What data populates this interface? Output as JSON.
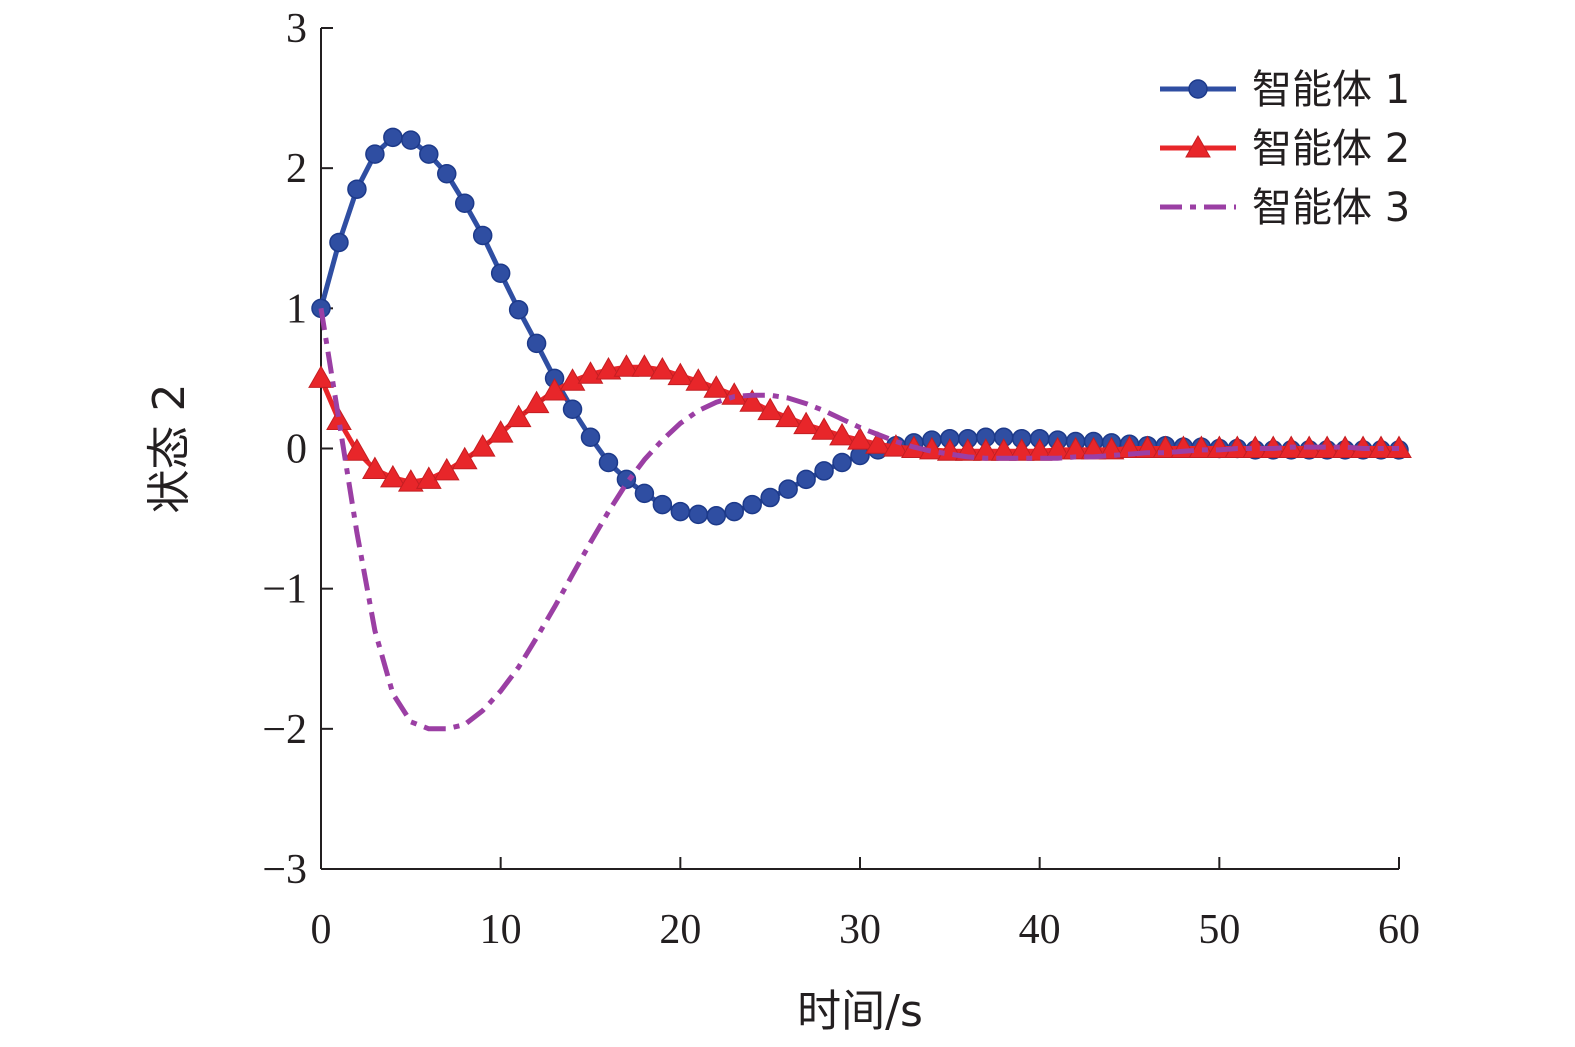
{
  "chart_data": {
    "type": "line",
    "title": "",
    "xlabel": "时间/s",
    "ylabel": "状态 2",
    "xlim": [
      0,
      60
    ],
    "ylim": [
      -3,
      3
    ],
    "xticks": [
      0,
      10,
      20,
      30,
      40,
      50,
      60
    ],
    "yticks": [
      -3,
      -2,
      -1,
      0,
      1,
      2,
      3
    ],
    "xtick_labels": [
      "0",
      "10",
      "20",
      "30",
      "40",
      "50",
      "60"
    ],
    "ytick_labels": [
      "−3",
      "−2",
      "−1",
      "0",
      "1",
      "2",
      "3"
    ],
    "grid": false,
    "legend_position": "top-right",
    "series": [
      {
        "name": "智能体 1",
        "color": "#2f4ea2",
        "style": "solid",
        "marker": "circle",
        "x": [
          0,
          1,
          2,
          3,
          4,
          5,
          6,
          7,
          8,
          9,
          10,
          11,
          12,
          13,
          14,
          15,
          16,
          17,
          18,
          19,
          20,
          21,
          22,
          23,
          24,
          25,
          26,
          27,
          28,
          29,
          30,
          31,
          32,
          33,
          34,
          35,
          36,
          37,
          38,
          39,
          40,
          41,
          42,
          43,
          44,
          45,
          46,
          47,
          48,
          49,
          50,
          51,
          52,
          53,
          54,
          55,
          56,
          57,
          58,
          59,
          60
        ],
        "y": [
          1.0,
          1.47,
          1.85,
          2.1,
          2.22,
          2.2,
          2.1,
          1.96,
          1.75,
          1.52,
          1.25,
          0.99,
          0.75,
          0.5,
          0.28,
          0.08,
          -0.1,
          -0.22,
          -0.32,
          -0.4,
          -0.45,
          -0.47,
          -0.48,
          -0.45,
          -0.4,
          -0.35,
          -0.29,
          -0.22,
          -0.16,
          -0.1,
          -0.05,
          -0.01,
          0.02,
          0.04,
          0.06,
          0.07,
          0.07,
          0.08,
          0.08,
          0.07,
          0.07,
          0.06,
          0.05,
          0.05,
          0.04,
          0.03,
          0.02,
          0.02,
          0.01,
          0.01,
          0.0,
          0.0,
          -0.01,
          -0.01,
          -0.01,
          -0.01,
          -0.01,
          -0.01,
          -0.01,
          -0.01,
          -0.01
        ]
      },
      {
        "name": "智能体 2",
        "color": "#e8262a",
        "style": "solid",
        "marker": "triangle",
        "x": [
          0,
          1,
          2,
          3,
          4,
          5,
          6,
          7,
          8,
          9,
          10,
          11,
          12,
          13,
          14,
          15,
          16,
          17,
          18,
          19,
          20,
          21,
          22,
          23,
          24,
          25,
          26,
          27,
          28,
          29,
          30,
          31,
          32,
          33,
          34,
          35,
          36,
          37,
          38,
          39,
          40,
          41,
          42,
          43,
          44,
          45,
          46,
          47,
          48,
          49,
          50,
          51,
          52,
          53,
          54,
          55,
          56,
          57,
          58,
          59,
          60
        ],
        "y": [
          0.5,
          0.2,
          -0.02,
          -0.15,
          -0.21,
          -0.24,
          -0.22,
          -0.16,
          -0.08,
          0.01,
          0.11,
          0.22,
          0.32,
          0.41,
          0.48,
          0.53,
          0.56,
          0.58,
          0.58,
          0.56,
          0.52,
          0.48,
          0.43,
          0.38,
          0.33,
          0.27,
          0.22,
          0.17,
          0.13,
          0.09,
          0.06,
          0.03,
          0.01,
          0.0,
          -0.01,
          -0.02,
          -0.02,
          -0.02,
          -0.02,
          -0.02,
          -0.02,
          -0.01,
          -0.01,
          -0.01,
          -0.01,
          0.0,
          0.0,
          0.0,
          0.0,
          0.0,
          0.0,
          0.0,
          0.0,
          0.0,
          0.0,
          0.0,
          0.0,
          0.0,
          0.0,
          0.0,
          0.0
        ]
      },
      {
        "name": "智能体 3",
        "color": "#9b3fa4",
        "style": "dashdot",
        "marker": "none",
        "x": [
          0,
          1,
          2,
          3,
          4,
          5,
          6,
          7,
          8,
          9,
          10,
          11,
          12,
          13,
          14,
          15,
          16,
          17,
          18,
          19,
          20,
          21,
          22,
          23,
          24,
          25,
          26,
          27,
          28,
          29,
          30,
          31,
          32,
          33,
          34,
          35,
          36,
          37,
          38,
          39,
          40,
          41,
          42,
          43,
          44,
          45,
          46,
          47,
          48,
          49,
          50,
          51,
          52,
          53,
          54,
          55,
          56,
          57,
          58,
          59,
          60
        ],
        "y": [
          1.0,
          0.2,
          -0.6,
          -1.3,
          -1.75,
          -1.95,
          -2.0,
          -2.0,
          -1.97,
          -1.87,
          -1.73,
          -1.56,
          -1.35,
          -1.13,
          -0.9,
          -0.67,
          -0.45,
          -0.25,
          -0.08,
          0.06,
          0.18,
          0.27,
          0.33,
          0.37,
          0.38,
          0.38,
          0.36,
          0.32,
          0.27,
          0.21,
          0.15,
          0.1,
          0.05,
          0.01,
          -0.02,
          -0.04,
          -0.06,
          -0.07,
          -0.07,
          -0.07,
          -0.07,
          -0.07,
          -0.06,
          -0.06,
          -0.05,
          -0.04,
          -0.03,
          -0.03,
          -0.02,
          -0.01,
          -0.01,
          0.0,
          0.0,
          0.0,
          0.01,
          0.01,
          0.01,
          0.01,
          0.0,
          0.0,
          0.0
        ]
      }
    ]
  }
}
